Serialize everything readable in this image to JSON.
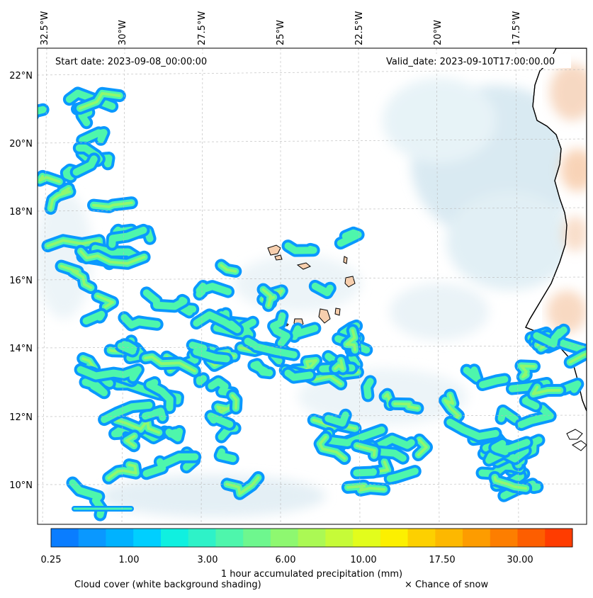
{
  "map": {
    "start_date": "Start date: 2023-09-08_00:00:00",
    "valid_date": "Valid_date: 2023-09-10T17:00:00.00",
    "lon_labels": [
      "32.5°W",
      "30°W",
      "27.5°W",
      "25°W",
      "22.5°W",
      "20°W",
      "17.5°W"
    ],
    "lat_labels": [
      "22°N",
      "20°N",
      "18°N",
      "16°N",
      "14°N",
      "12°N",
      "10°N"
    ],
    "land_color": "#f7cfae",
    "cloud_color": "#cfe6ef"
  },
  "colorbar": {
    "title": "1 hour accumulated precipitation (mm)",
    "tick_labels": [
      "0.25",
      "1.00",
      "3.00",
      "6.00",
      "10.00",
      "17.50",
      "30.00"
    ],
    "colors": [
      "#0a7dff",
      "#0a98ff",
      "#00b2ff",
      "#00cfff",
      "#10f0e0",
      "#2ef2c8",
      "#4ef6ac",
      "#6ef78e",
      "#8ef870",
      "#abf954",
      "#c6fb38",
      "#e2fd1c",
      "#fcf000",
      "#fdd000",
      "#fdb800",
      "#fd9c00",
      "#fd7e00",
      "#fd5e00",
      "#ff3c00"
    ]
  },
  "legend": {
    "cloud_text": "Cloud cover (white background shading)",
    "snow_text": "× Chance of snow"
  }
}
